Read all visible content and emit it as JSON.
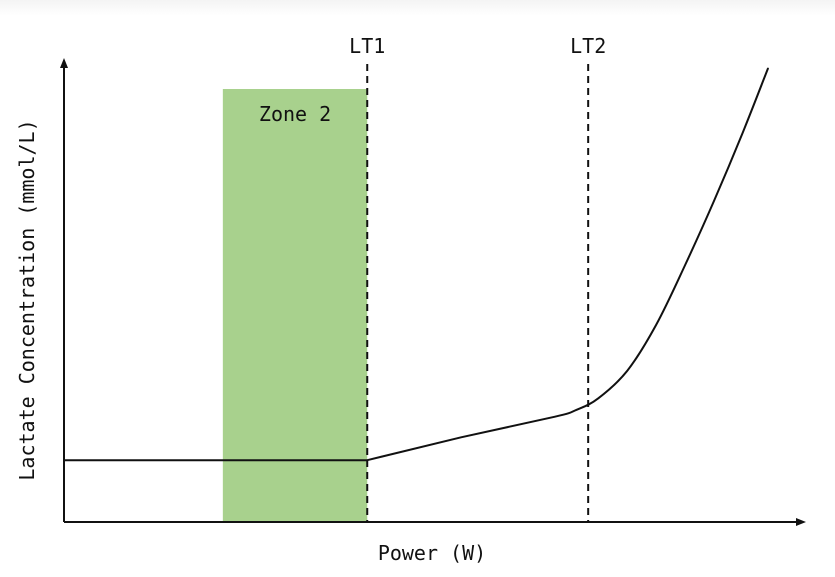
{
  "chart_data": {
    "type": "line",
    "xlabel": "Power (W)",
    "ylabel": "Lactate Concentration (mmol/L)",
    "xlim": [
      0,
      100
    ],
    "ylim": [
      0,
      100
    ],
    "grid": false,
    "legend": "none",
    "series": [
      {
        "points": [
          [
            0,
            13.5
          ],
          [
            42,
            13.5
          ],
          [
            55,
            18.5
          ],
          [
            68,
            23
          ],
          [
            71,
            24.5
          ],
          [
            74,
            27
          ],
          [
            78,
            33
          ],
          [
            82,
            43
          ],
          [
            86,
            56
          ],
          [
            90,
            70
          ],
          [
            94,
            85
          ],
          [
            97.5,
            99
          ]
        ]
      }
    ],
    "markers": [
      {
        "label": "LT1",
        "x": 42
      },
      {
        "label": "LT2",
        "x": 72.6
      }
    ],
    "zones": [
      {
        "label": "Zone 2",
        "x_start": 22,
        "x_end": 42,
        "color": "#a8d18d"
      }
    ]
  }
}
